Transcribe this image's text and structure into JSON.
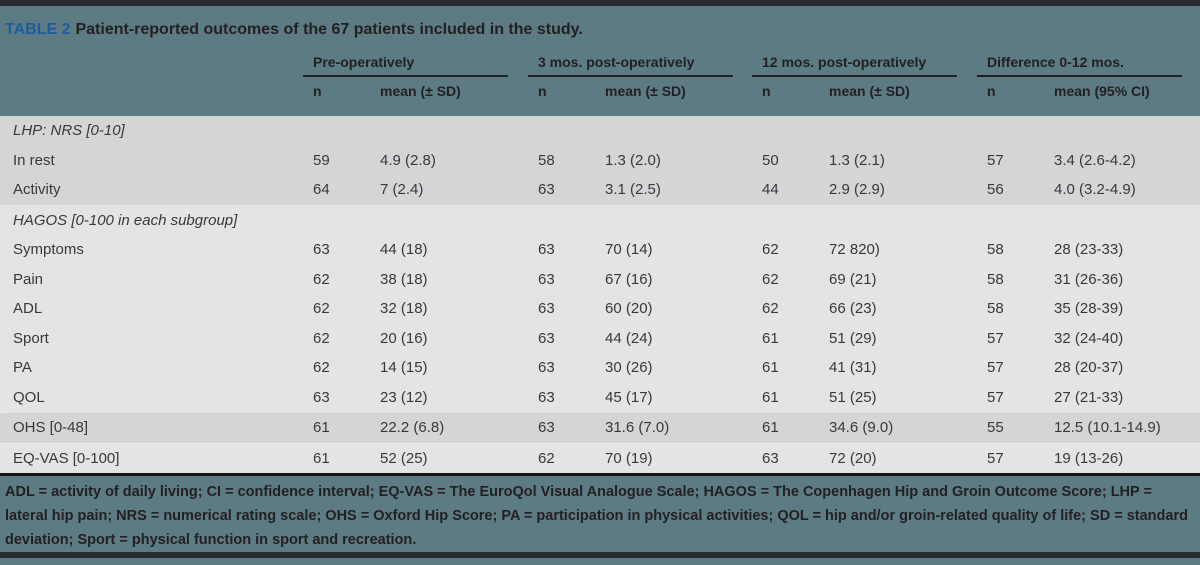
{
  "table": {
    "label": "TABLE 2",
    "title": "Patient-reported outcomes of the 67 patients included in the study.",
    "col_groups": [
      {
        "label": "Pre-operatively",
        "subs": [
          "n",
          "mean (± SD)"
        ]
      },
      {
        "label": "3 mos. post-operatively",
        "subs": [
          "n",
          "mean (± SD)"
        ]
      },
      {
        "label": "12 mos. post-operatively",
        "subs": [
          "n",
          "mean (± SD)"
        ]
      },
      {
        "label": "Difference 0-12 mos.",
        "subs": [
          "n",
          "mean (95% CI)"
        ]
      }
    ],
    "rows": [
      {
        "type": "section",
        "band": "dark",
        "label": "LHP: NRS [0-10]",
        "values": []
      },
      {
        "type": "data",
        "band": "dark",
        "label": "In rest",
        "values": [
          "59",
          "4.9 (2.8)",
          "58",
          "1.3 (2.0)",
          "50",
          "1.3 (2.1)",
          "57",
          "3.4 (2.6-4.2)"
        ]
      },
      {
        "type": "data",
        "band": "dark",
        "label": "Activity",
        "values": [
          "64",
          "7 (2.4)",
          "63",
          "3.1 (2.5)",
          "44",
          "2.9 (2.9)",
          "56",
          "4.0 (3.2-4.9)"
        ]
      },
      {
        "type": "section",
        "band": "light",
        "label": "HAGOS [0-100 in each subgroup]",
        "values": []
      },
      {
        "type": "data",
        "band": "light",
        "label": "Symptoms",
        "values": [
          "63",
          "44 (18)",
          "63",
          "70 (14)",
          "62",
          "72 820)",
          "58",
          "28 (23-33)"
        ]
      },
      {
        "type": "data",
        "band": "light",
        "label": "Pain",
        "values": [
          "62",
          "38 (18)",
          "63",
          "67 (16)",
          "62",
          "69 (21)",
          "58",
          "31 (26-36)"
        ]
      },
      {
        "type": "data",
        "band": "light",
        "label": "ADL",
        "values": [
          "62",
          "32 (18)",
          "63",
          "60 (20)",
          "62",
          "66 (23)",
          "58",
          "35 (28-39)"
        ]
      },
      {
        "type": "data",
        "band": "light",
        "label": "Sport",
        "values": [
          "62",
          "20 (16)",
          "63",
          "44 (24)",
          "61",
          "51 (29)",
          "57",
          "32 (24-40)"
        ]
      },
      {
        "type": "data",
        "band": "light",
        "label": "PA",
        "values": [
          "62",
          "14 (15)",
          "63",
          "30 (26)",
          "61",
          "41 (31)",
          "57",
          "28 (20-37)"
        ]
      },
      {
        "type": "data",
        "band": "light",
        "label": "QOL",
        "values": [
          "63",
          "23 (12)",
          "63",
          "45 (17)",
          "61",
          "51 (25)",
          "57",
          "27 (21-33)"
        ]
      },
      {
        "type": "data",
        "band": "dark",
        "label": "OHS [0-48]",
        "values": [
          "61",
          "22.2 (6.8)",
          "63",
          "31.6 (7.0)",
          "61",
          "34.6 (9.0)",
          "55",
          "12.5 (10.1-14.9)"
        ]
      },
      {
        "type": "data",
        "band": "light",
        "label": "EQ-VAS [0-100]",
        "values": [
          "61",
          "52 (25)",
          "62",
          "70 (19)",
          "63",
          "72 (20)",
          "57",
          "19 (13-26)"
        ]
      }
    ],
    "footnote": "ADL = activity of daily living; CI = confidence interval; EQ-VAS = The EuroQol Visual Analogue Scale; HAGOS = The Copenhagen Hip and Groin Outcome Score; LHP = lateral hip pain; NRS = numerical rating scale; OHS = Oxford Hip Score; PA = participation in physical activities; QOL = hip and/or groin-related quality of life; SD = standard deviation; Sport = physical function in sport and recreation."
  },
  "colors": {
    "background_teal": "#5d7b82",
    "border_dark": "#2a292f",
    "table_label_blue": "#1e5c9f",
    "row_band_dark": "#d3d5d7",
    "row_band_light": "#e3e4e6",
    "text_dark": "#232024"
  }
}
